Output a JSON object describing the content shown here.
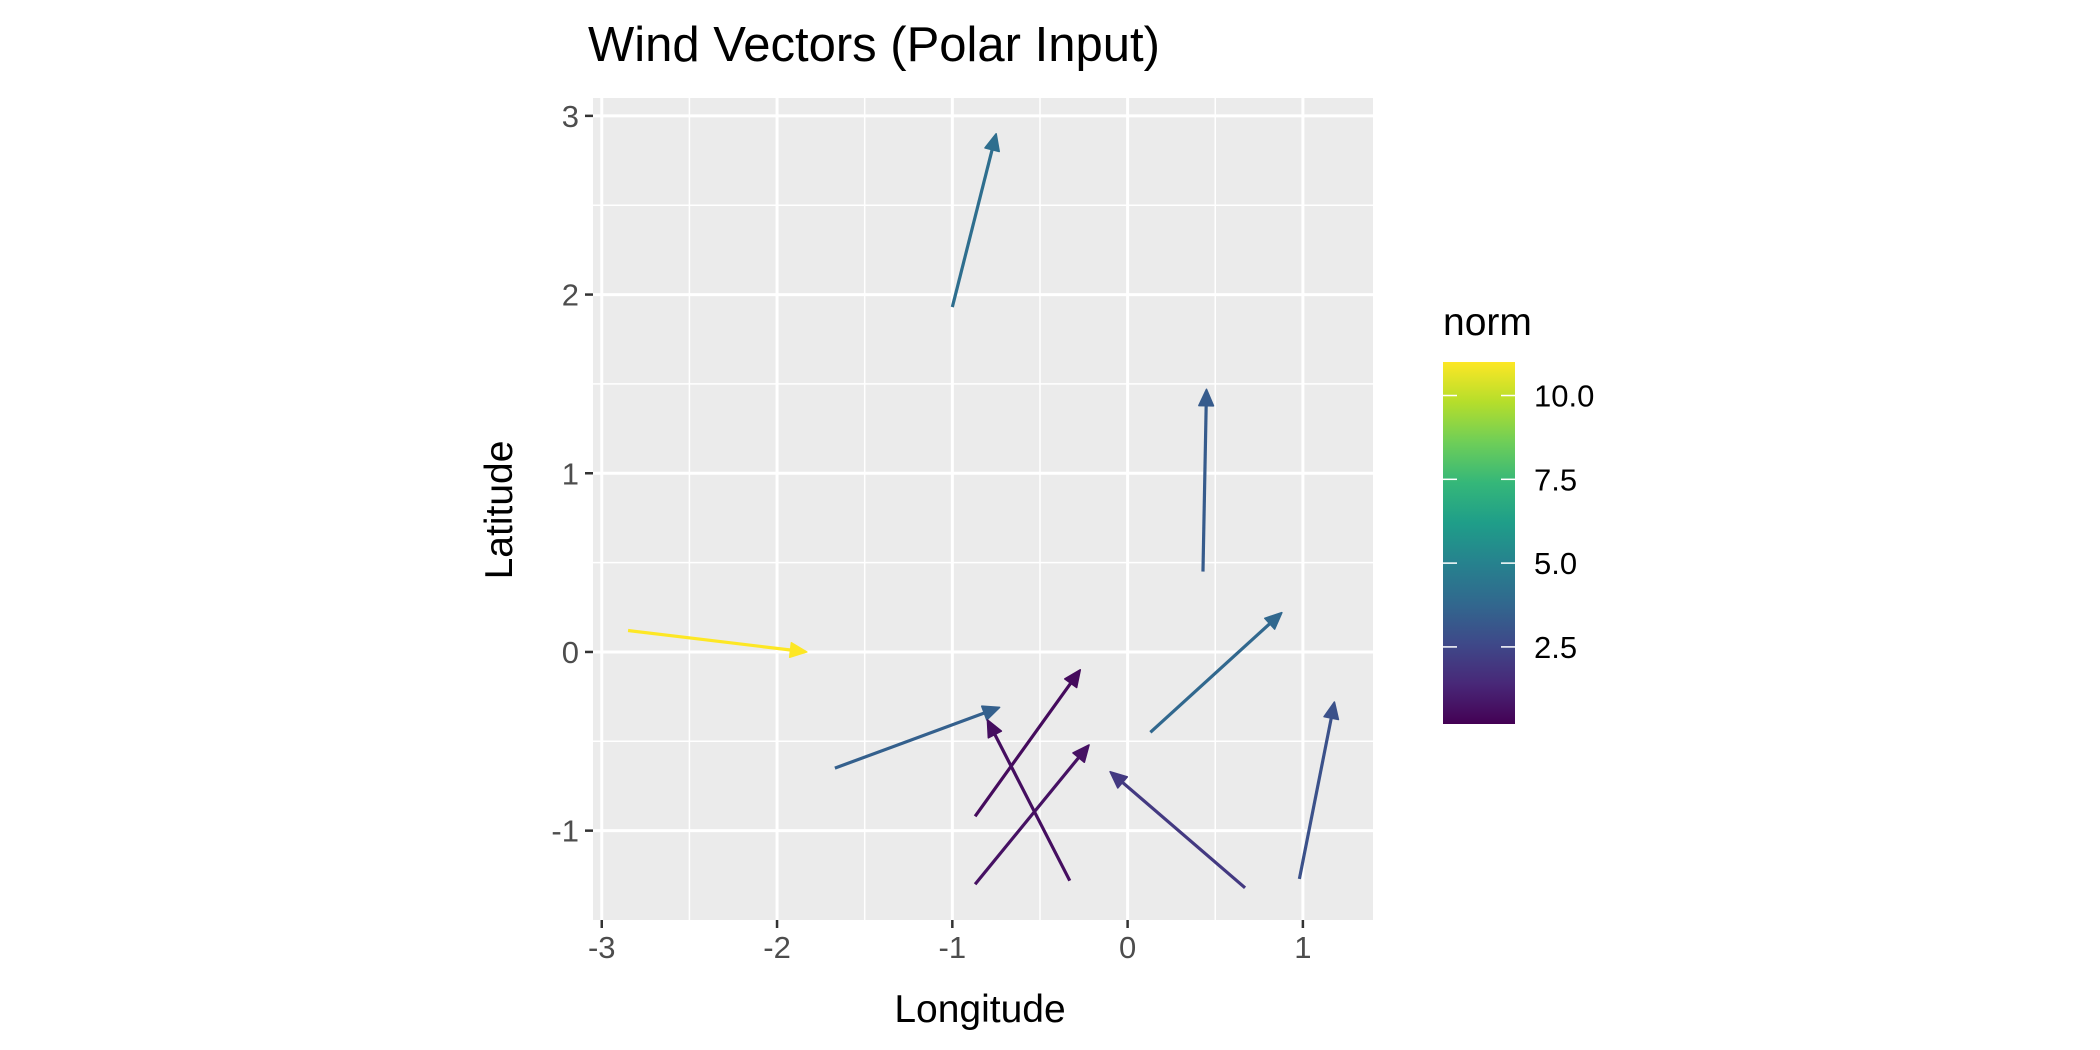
{
  "chart_data": {
    "type": "quiver",
    "title": "Wind Vectors (Polar Input)",
    "xlabel": "Longitude",
    "ylabel": "Latitude",
    "xlim": [
      -3.05,
      1.4
    ],
    "ylim": [
      -1.5,
      3.1
    ],
    "x_ticks": [
      -3,
      -2,
      -1,
      0,
      1
    ],
    "x_tick_labels": [
      "-3",
      "-2",
      "-1",
      "0",
      "1"
    ],
    "y_ticks": [
      -1,
      0,
      1,
      2,
      3
    ],
    "y_tick_labels": [
      "-1",
      "0",
      "1",
      "2",
      "3"
    ],
    "grid": true,
    "panel_background": "#ebebeb",
    "legend": {
      "title": "norm",
      "placement": "right",
      "type": "colorbar",
      "range": [
        0.2,
        11.0
      ],
      "ticks": [
        2.5,
        5.0,
        7.5,
        10.0
      ],
      "tick_labels": [
        "2.5",
        "5.0",
        "7.5",
        "10.0"
      ],
      "colormap": "viridis"
    },
    "vectors": [
      {
        "x0": -2.85,
        "y0": 0.12,
        "x1": -1.83,
        "y1": 0.0,
        "norm": 11.0
      },
      {
        "x0": -1.0,
        "y0": 1.93,
        "x1": -0.75,
        "y1": 2.9,
        "norm": 4.1
      },
      {
        "x0": 0.43,
        "y0": 0.45,
        "x1": 0.45,
        "y1": 1.47,
        "norm": 3.3
      },
      {
        "x0": 0.13,
        "y0": -0.45,
        "x1": 0.88,
        "y1": 0.22,
        "norm": 3.8
      },
      {
        "x0": -1.67,
        "y0": -0.65,
        "x1": -0.73,
        "y1": -0.31,
        "norm": 3.5
      },
      {
        "x0": -0.87,
        "y0": -0.92,
        "x1": -0.27,
        "y1": -0.1,
        "norm": 0.5
      },
      {
        "x0": -0.87,
        "y0": -1.3,
        "x1": -0.22,
        "y1": -0.52,
        "norm": 0.7
      },
      {
        "x0": -0.33,
        "y0": -1.28,
        "x1": -0.8,
        "y1": -0.38,
        "norm": 0.6
      },
      {
        "x0": 0.67,
        "y0": -1.32,
        "x1": -0.1,
        "y1": -0.67,
        "norm": 2.0
      },
      {
        "x0": 0.98,
        "y0": -1.27,
        "x1": 1.18,
        "y1": -0.28,
        "norm": 2.9
      }
    ]
  }
}
